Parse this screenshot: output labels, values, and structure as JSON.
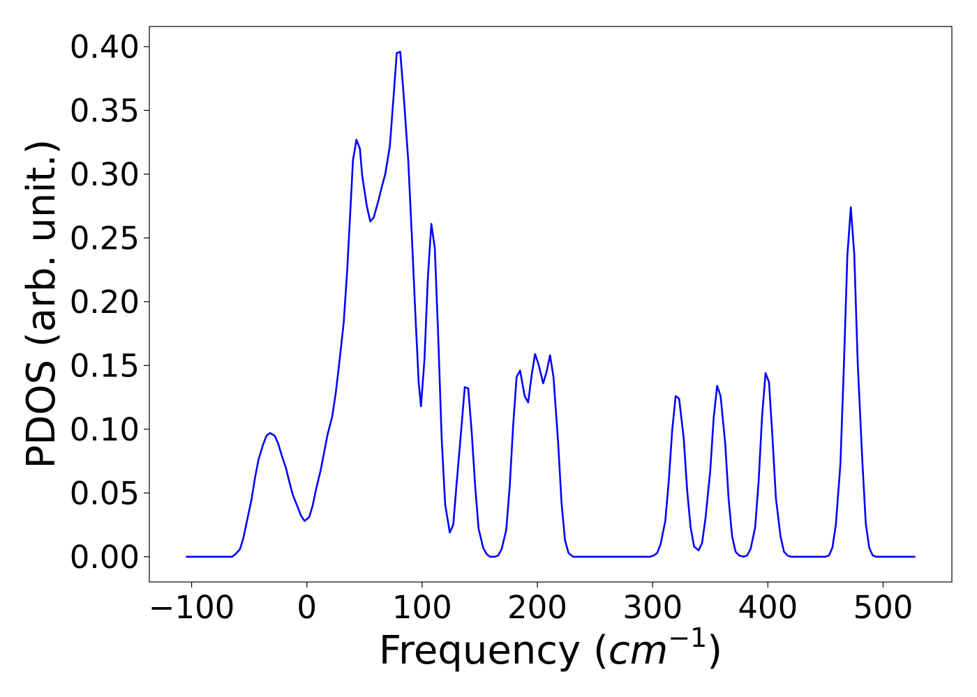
{
  "chart_data": {
    "type": "line",
    "xlabel": [
      "Frequency (",
      "cm",
      "−1",
      ")"
    ],
    "ylabel": "PDOS (arb. unit.)",
    "x": [
      -105,
      -65,
      -62,
      -58,
      -55,
      -52,
      -48,
      -45,
      -42,
      -38,
      -35,
      -32,
      -28,
      -25,
      -22,
      -18,
      -15,
      -12,
      -8,
      -5,
      -2,
      2,
      5,
      8,
      12,
      15,
      18,
      22,
      25,
      28,
      32,
      35,
      38,
      40,
      43,
      46,
      48,
      52,
      55,
      58,
      62,
      65,
      68,
      72,
      75,
      78,
      81,
      84,
      88,
      91,
      94,
      97,
      99,
      102,
      105,
      108,
      111,
      114,
      117,
      120,
      124,
      127,
      130,
      134,
      137,
      140,
      143,
      146,
      149,
      153,
      156,
      159,
      163,
      166,
      169,
      173,
      176,
      179,
      182,
      185,
      189,
      192,
      195,
      198,
      201,
      205,
      208,
      211,
      214,
      218,
      221,
      224,
      227,
      231,
      298,
      301,
      304,
      307,
      311,
      314,
      317,
      320,
      323,
      327,
      330,
      333,
      336,
      340,
      343,
      346,
      350,
      353,
      356,
      359,
      363,
      366,
      369,
      372,
      375,
      379,
      382,
      385,
      389,
      392,
      395,
      398,
      401,
      404,
      407,
      411,
      414,
      417,
      420,
      450,
      453,
      456,
      459,
      463,
      466,
      469,
      472,
      475,
      478,
      482,
      485,
      488,
      491,
      494,
      528
    ],
    "series": [
      {
        "color": "#0000ff",
        "values": [
          0,
          0,
          0.002,
          0.006,
          0.015,
          0.028,
          0.045,
          0.062,
          0.076,
          0.088,
          0.095,
          0.097,
          0.095,
          0.089,
          0.08,
          0.069,
          0.058,
          0.048,
          0.039,
          0.032,
          0.028,
          0.031,
          0.04,
          0.053,
          0.068,
          0.082,
          0.096,
          0.11,
          0.128,
          0.151,
          0.184,
          0.225,
          0.276,
          0.311,
          0.327,
          0.32,
          0.299,
          0.275,
          0.263,
          0.266,
          0.279,
          0.29,
          0.3,
          0.322,
          0.358,
          0.395,
          0.396,
          0.362,
          0.31,
          0.253,
          0.193,
          0.137,
          0.118,
          0.154,
          0.219,
          0.261,
          0.242,
          0.172,
          0.092,
          0.041,
          0.019,
          0.025,
          0.058,
          0.1,
          0.133,
          0.132,
          0.098,
          0.056,
          0.022,
          0.007,
          0.002,
          0,
          0,
          0.001,
          0.006,
          0.021,
          0.055,
          0.103,
          0.141,
          0.146,
          0.126,
          0.121,
          0.142,
          0.159,
          0.151,
          0.136,
          0.145,
          0.158,
          0.141,
          0.09,
          0.042,
          0.013,
          0.003,
          0,
          0,
          0.001,
          0.003,
          0.01,
          0.028,
          0.059,
          0.099,
          0.126,
          0.124,
          0.093,
          0.052,
          0.023,
          0.008,
          0.005,
          0.011,
          0.031,
          0.067,
          0.109,
          0.134,
          0.126,
          0.089,
          0.045,
          0.016,
          0.004,
          0.001,
          0,
          0.001,
          0.006,
          0.023,
          0.059,
          0.11,
          0.144,
          0.137,
          0.094,
          0.046,
          0.016,
          0.004,
          0.001,
          0,
          0,
          0.001,
          0.007,
          0.025,
          0.073,
          0.15,
          0.236,
          0.274,
          0.237,
          0.152,
          0.075,
          0.026,
          0.007,
          0.001,
          0,
          0
        ]
      }
    ],
    "xlim": [
      -136.7,
      559.7
    ],
    "xticks": [
      {
        "value": -100,
        "label": "−100"
      },
      0,
      100,
      200,
      300,
      400,
      500
    ],
    "ylim": [
      -0.0198,
      0.4158
    ],
    "yticks": [
      {
        "value": 0,
        "label": "0.00"
      },
      {
        "value": 0.05,
        "label": "0.05"
      },
      {
        "value": 0.1,
        "label": "0.10"
      },
      {
        "value": 0.15,
        "label": "0.15"
      },
      {
        "value": 0.2,
        "label": "0.20"
      },
      {
        "value": 0.25,
        "label": "0.25"
      },
      {
        "value": 0.3,
        "label": "0.30"
      },
      {
        "value": 0.35,
        "label": "0.35"
      },
      {
        "value": 0.4,
        "label": "0.40"
      }
    ],
    "grid": false
  }
}
